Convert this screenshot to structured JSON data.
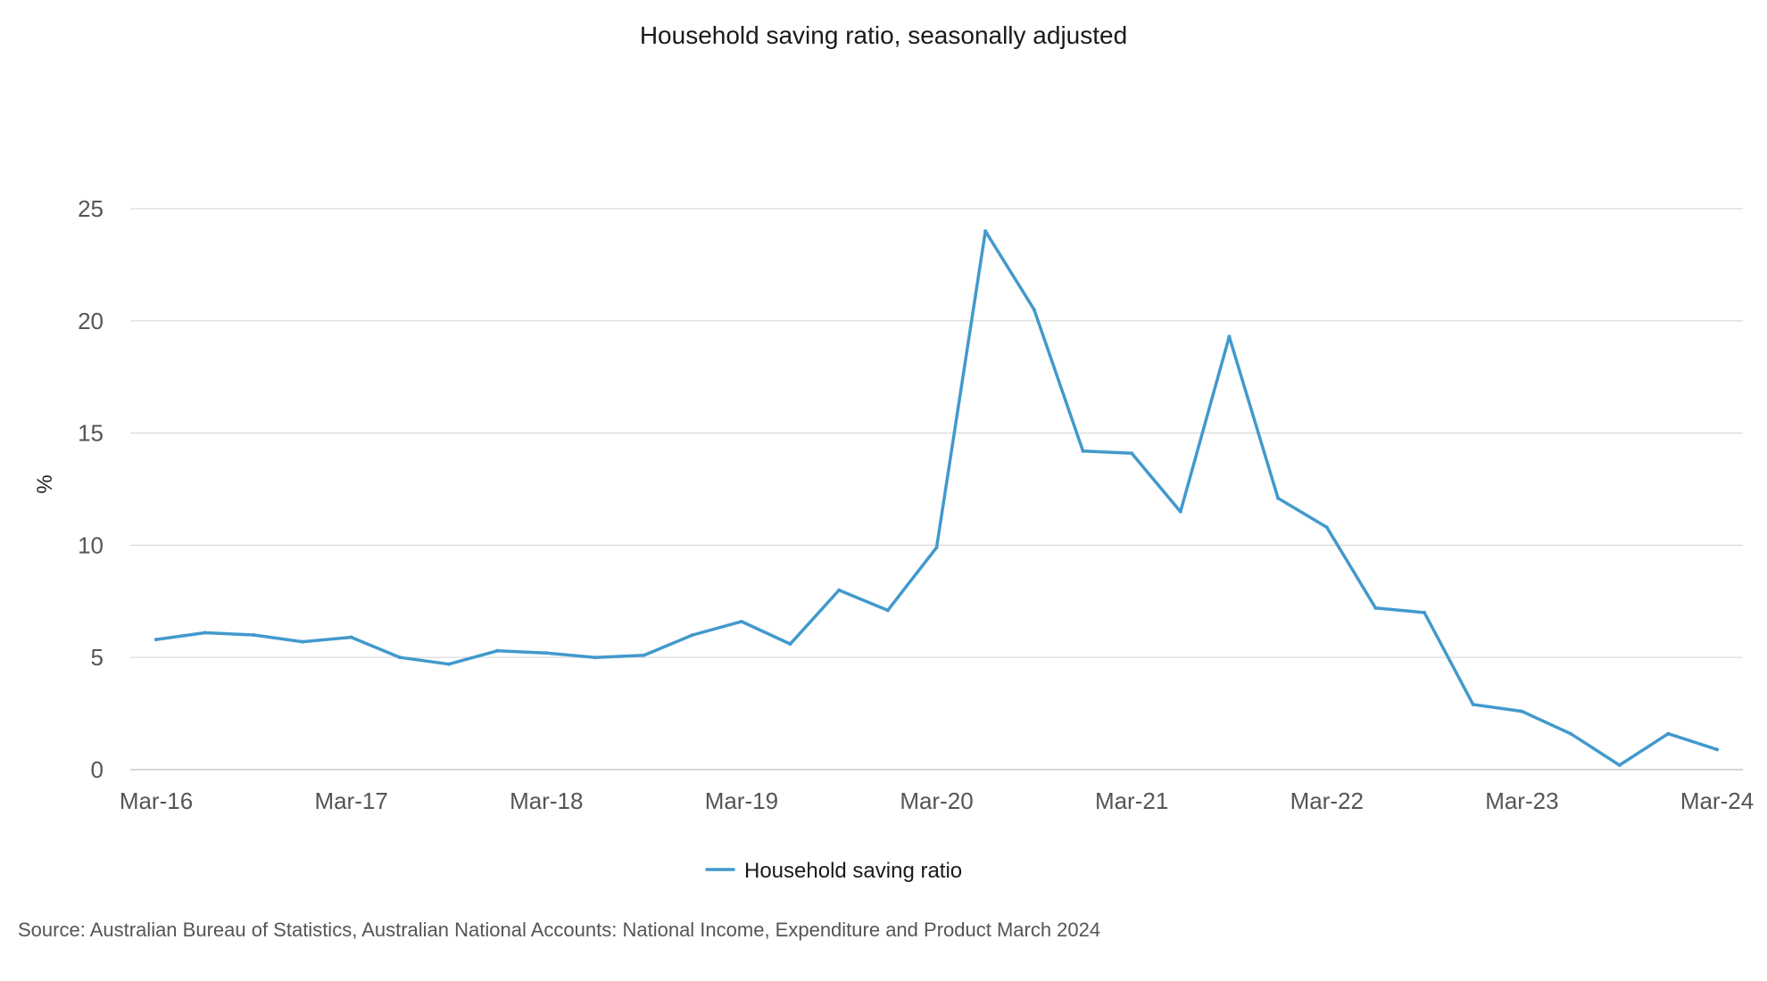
{
  "chart_data": {
    "type": "line",
    "title": "Household saving ratio, seasonally adjusted",
    "ylabel": "%",
    "xlabel": "",
    "ylim": [
      0,
      25
    ],
    "y_ticks": [
      0,
      5,
      10,
      15,
      20,
      25
    ],
    "grid": true,
    "legend_position": "bottom",
    "x": [
      "Mar-16",
      "Jun-16",
      "Sep-16",
      "Dec-16",
      "Mar-17",
      "Jun-17",
      "Sep-17",
      "Dec-17",
      "Mar-18",
      "Jun-18",
      "Sep-18",
      "Dec-18",
      "Mar-19",
      "Jun-19",
      "Sep-19",
      "Dec-19",
      "Mar-20",
      "Jun-20",
      "Sep-20",
      "Dec-20",
      "Mar-21",
      "Jun-21",
      "Sep-21",
      "Dec-21",
      "Mar-22",
      "Jun-22",
      "Sep-22",
      "Dec-22",
      "Mar-23",
      "Jun-23",
      "Sep-23",
      "Dec-23",
      "Mar-24"
    ],
    "x_tick_labels": [
      "Mar-16",
      "Mar-17",
      "Mar-18",
      "Mar-19",
      "Mar-20",
      "Mar-21",
      "Mar-22",
      "Mar-23",
      "Mar-24"
    ],
    "series": [
      {
        "name": "Household saving ratio",
        "color": "#4299cc",
        "values": [
          5.8,
          6.1,
          6.0,
          5.7,
          5.9,
          5.0,
          4.7,
          5.3,
          5.2,
          5.0,
          5.1,
          6.0,
          6.6,
          5.6,
          8.0,
          7.1,
          9.9,
          24.0,
          20.5,
          14.2,
          14.1,
          11.5,
          19.3,
          12.1,
          10.8,
          7.2,
          7.0,
          2.9,
          2.6,
          1.6,
          0.2,
          1.6,
          0.9
        ]
      }
    ]
  },
  "source_note": "Source: Australian Bureau of Statistics, Australian National Accounts: National Income, Expenditure and Product March 2024"
}
